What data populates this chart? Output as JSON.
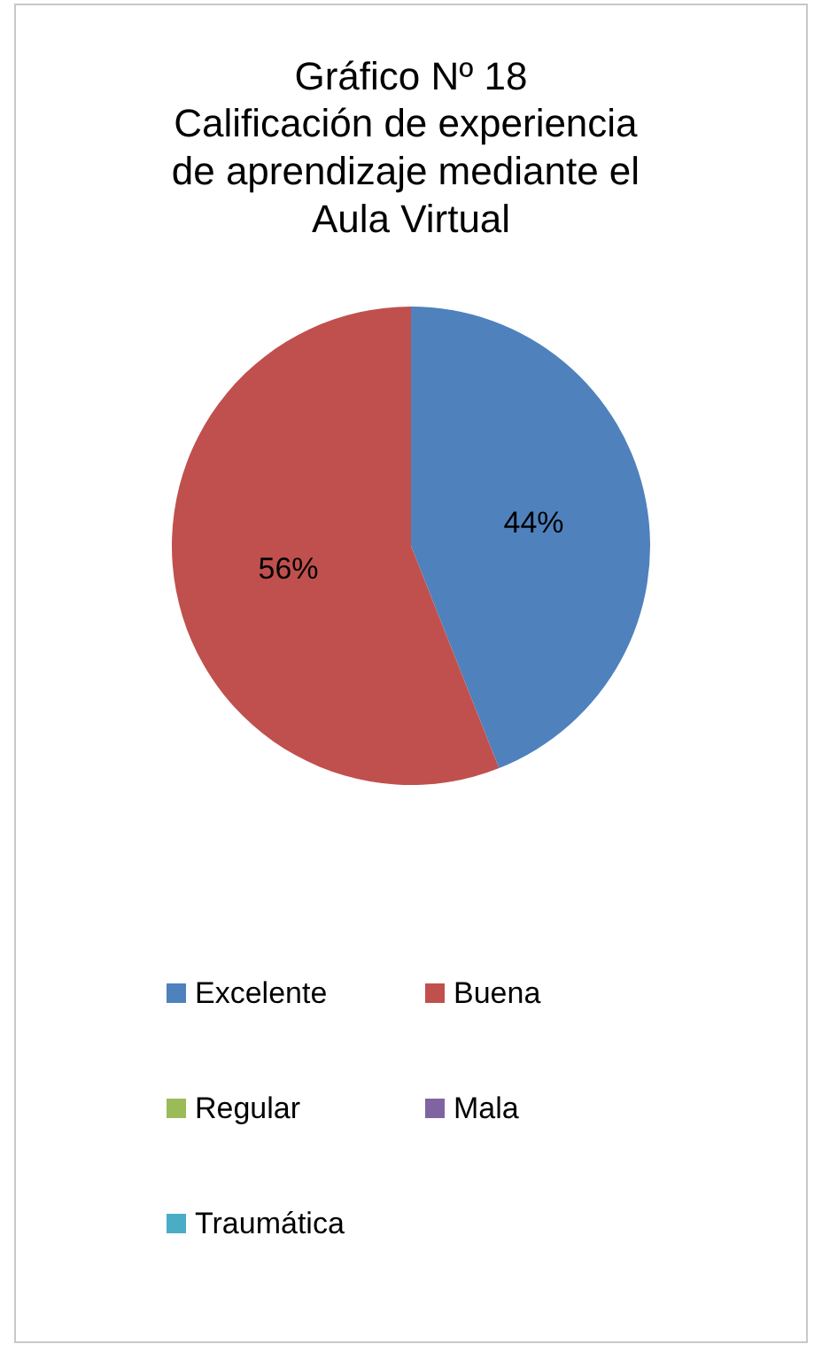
{
  "chart_data": {
    "type": "pie",
    "title": "Gráfico Nº 18",
    "subtitle": "Calificación de experiencia de aprendizaje mediante el Aula Virtual",
    "categories": [
      "Excelente",
      "Buena",
      "Regular",
      "Mala",
      "Traumática"
    ],
    "values": [
      44,
      56,
      0,
      0,
      0
    ],
    "colors": [
      "#4f81bd",
      "#c0504d",
      "#9bbb59",
      "#8064a2",
      "#4bacc6"
    ],
    "value_labels": [
      "44%",
      "56%",
      null,
      null,
      null
    ],
    "legend": "bottom"
  }
}
